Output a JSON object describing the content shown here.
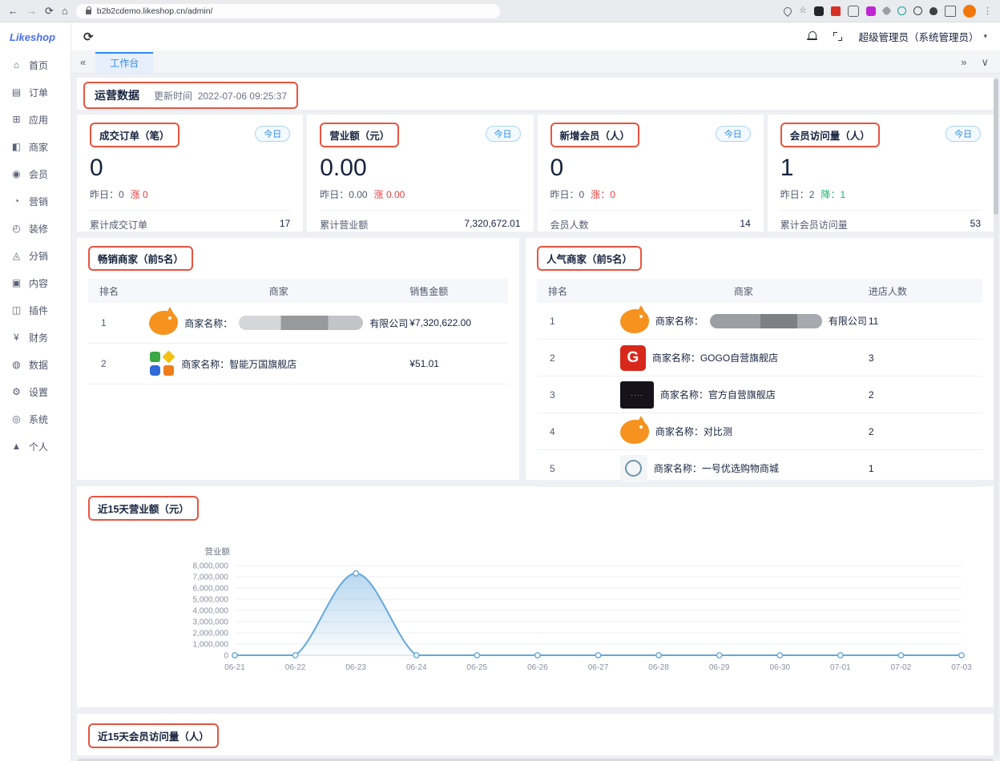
{
  "browser": {
    "url": "b2b2cdemo.likeshop.cn/admin/"
  },
  "app": {
    "logo": "Likeshop",
    "admin_label": "超级管理员（系统管理员）",
    "active_tab": "工作台",
    "sidebar": {
      "items": [
        {
          "glyph": "⌂",
          "label": "首页"
        },
        {
          "glyph": "▤",
          "label": "订单"
        },
        {
          "glyph": "⊞",
          "label": "应用"
        },
        {
          "glyph": "◧",
          "label": "商家"
        },
        {
          "glyph": "◉",
          "label": "会员"
        },
        {
          "glyph": "◔",
          "label": "营销"
        },
        {
          "glyph": "◴",
          "label": "装修"
        },
        {
          "glyph": "◬",
          "label": "分销"
        },
        {
          "glyph": "▣",
          "label": "内容"
        },
        {
          "glyph": "◫",
          "label": "插件"
        },
        {
          "glyph": "¥",
          "label": "财务"
        },
        {
          "glyph": "◍",
          "label": "数据"
        },
        {
          "glyph": "⚙",
          "label": "设置"
        },
        {
          "glyph": "◎",
          "label": "系统"
        },
        {
          "glyph": "▲",
          "label": "个人"
        }
      ]
    }
  },
  "colors": {
    "accent_blue": "#2d8cf0",
    "annotation_red": "#e85440",
    "delta_red": "#f13a3a",
    "delta_green": "#18b566",
    "chart_line": "#64a8dd"
  },
  "overview": {
    "title": "运营数据",
    "update_label": "更新时间",
    "update_time": "2022-07-06 09:25:37",
    "badge_label": "今日",
    "cards": [
      {
        "title": "成交订单（笔）",
        "value": "0",
        "yesterday_text": "昨日：0",
        "delta_text": "涨 0",
        "total_label": "累计成交订单",
        "total_value": "17"
      },
      {
        "title": "营业额（元）",
        "value": "0.00",
        "yesterday_text": "昨日：0.00",
        "delta_text": "涨 0.00",
        "total_label": "累计营业额",
        "total_value": "7,320,672.01"
      },
      {
        "title": "新增会员（人）",
        "value": "0",
        "yesterday_text": "昨日：0",
        "delta_text": "涨：0",
        "total_label": "会员人数",
        "total_value": "14"
      },
      {
        "title": "会员访问量（人）",
        "value": "1",
        "yesterday_text": "昨日：2",
        "delta_text": "降：1",
        "total_label": "累计会员访问量",
        "total_value": "53"
      }
    ]
  },
  "rank_table_left": {
    "title": "畅销商家（前5名）",
    "columns": [
      "排名",
      "商家",
      "销售金额"
    ],
    "rows": [
      {
        "rank": "1",
        "logo": "pig-logo",
        "name_prefix": "商家名称：",
        "name_suffix": "有限公司",
        "value": "¥7,320,622.00"
      },
      {
        "rank": "2",
        "logo": "squares-logo",
        "name": "商家名称：智能万国旗舰店",
        "value": "¥51.01"
      }
    ]
  },
  "rank_table_right": {
    "title": "人气商家（前5名）",
    "columns": [
      "排名",
      "商家",
      "进店人数"
    ],
    "rows": [
      {
        "rank": "1",
        "logo": "pig-logo",
        "name_prefix": "商家名称：",
        "name_suffix": "有限公司",
        "value": "11"
      },
      {
        "rank": "2",
        "logo": "g-logo",
        "name": "商家名称：GOGO自营旗舰店",
        "value": "3"
      },
      {
        "rank": "3",
        "logo": "black-logo",
        "name": "商家名称：官方自营旗舰店",
        "value": "2"
      },
      {
        "rank": "4",
        "logo": "pig-logo",
        "name": "商家名称：对比测",
        "value": "2"
      },
      {
        "rank": "5",
        "logo": "ring-logo",
        "name": "商家名称：一号优选购物商城",
        "value": "1"
      }
    ]
  },
  "chart_data": {
    "type": "area",
    "title": "近15天营业额（元）",
    "ylabel": "营业额",
    "x": [
      "06-21",
      "06-22",
      "06-23",
      "06-24",
      "06-25",
      "06-26",
      "06-27",
      "06-28",
      "06-29",
      "06-30",
      "07-01",
      "07-02",
      "07-03"
    ],
    "values": [
      0,
      0,
      7300000,
      0,
      0,
      0,
      0,
      0,
      0,
      0,
      0,
      0,
      0
    ],
    "ylim": [
      0,
      8000000
    ],
    "ytick_step": 1000000,
    "grid": true,
    "legend_position": "none",
    "line_color": "#64a8dd"
  },
  "visits_section": {
    "title": "近15天会员访问量（人）"
  }
}
